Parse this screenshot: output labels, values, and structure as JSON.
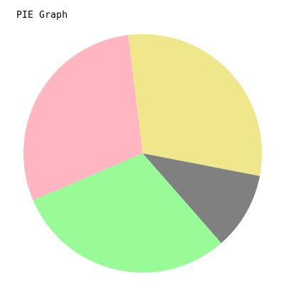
{
  "chart_data": {
    "type": "pie",
    "title": "PIE Graph",
    "slices": [
      {
        "value": 30.0,
        "color": "#f0e68c"
      },
      {
        "value": 10.5,
        "color": "#808080"
      },
      {
        "value": 30.0,
        "color": "#98fb98"
      },
      {
        "value": 29.5,
        "color": "#ffb6c1"
      }
    ],
    "start_angle_deg": -97,
    "direction": "clockwise",
    "legend": "none",
    "data_labels": "none"
  }
}
